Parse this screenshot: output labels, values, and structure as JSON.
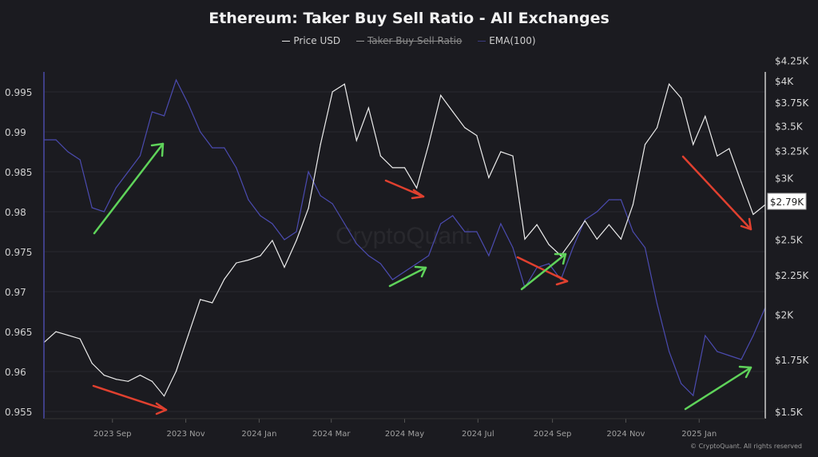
{
  "chart_data": {
    "type": "line",
    "title": "Ethereum: Taker Buy Sell Ratio - All Exchanges",
    "legend": [
      {
        "name": "Price USD",
        "color": "#e8e8e8",
        "hidden": false
      },
      {
        "name": "Taker Buy Sell Ratio",
        "color": "#9a9a9a",
        "hidden": true
      },
      {
        "name": "EMA(100)",
        "color": "#5555b0",
        "hidden": false
      }
    ],
    "legend_position": "top-center",
    "xlim": [
      "2023-07-06",
      "2025-02-25"
    ],
    "x_ticks": [
      {
        "label": "2023 Sep",
        "date": "2023-09-01"
      },
      {
        "label": "2023 Nov",
        "date": "2023-11-01"
      },
      {
        "label": "2024 Jan",
        "date": "2024-01-01"
      },
      {
        "label": "2024 Mar",
        "date": "2024-03-01"
      },
      {
        "label": "2024 May",
        "date": "2024-05-01"
      },
      {
        "label": "2024 Jul",
        "date": "2024-07-01"
      },
      {
        "label": "2024 Sep",
        "date": "2024-09-01"
      },
      {
        "label": "2024 Nov",
        "date": "2024-11-01"
      },
      {
        "label": "2025 Jan",
        "date": "2025-01-01"
      }
    ],
    "left_axis": {
      "ylim": [
        0.955,
        0.9995
      ],
      "ticks": [
        "0.995",
        "0.99",
        "0.985",
        "0.98",
        "0.975",
        "0.97",
        "0.965",
        "0.96",
        "0.955"
      ]
    },
    "right_axis": {
      "scale": "log",
      "ylim": [
        1500,
        4250
      ],
      "ticks": [
        {
          "label": "$4.25K",
          "value": 4250
        },
        {
          "label": "$4K",
          "value": 4000
        },
        {
          "label": "$3.75K",
          "value": 3750
        },
        {
          "label": "$3.5K",
          "value": 3500
        },
        {
          "label": "$3.25K",
          "value": 3250
        },
        {
          "label": "$3K",
          "value": 3000
        },
        {
          "label": "$2.5K",
          "value": 2500
        },
        {
          "label": "$2.25K",
          "value": 2250
        },
        {
          "label": "$2K",
          "value": 2000
        },
        {
          "label": "$1.75K",
          "value": 1750
        },
        {
          "label": "$1.5K",
          "value": 1500
        }
      ]
    },
    "current_price_label": "$2.79K",
    "grid": true,
    "dates": [
      "2023-07-06",
      "2023-07-16",
      "2023-07-26",
      "2023-08-05",
      "2023-08-15",
      "2023-08-25",
      "2023-09-04",
      "2023-09-14",
      "2023-09-24",
      "2023-10-04",
      "2023-10-14",
      "2023-10-24",
      "2023-11-03",
      "2023-11-13",
      "2023-11-23",
      "2023-12-03",
      "2023-12-13",
      "2023-12-23",
      "2024-01-02",
      "2024-01-12",
      "2024-01-22",
      "2024-02-01",
      "2024-02-11",
      "2024-02-21",
      "2024-03-02",
      "2024-03-12",
      "2024-03-22",
      "2024-04-01",
      "2024-04-11",
      "2024-04-21",
      "2024-05-01",
      "2024-05-11",
      "2024-05-21",
      "2024-05-31",
      "2024-06-10",
      "2024-06-20",
      "2024-06-30",
      "2024-07-10",
      "2024-07-20",
      "2024-07-30",
      "2024-08-09",
      "2024-08-19",
      "2024-08-29",
      "2024-09-08",
      "2024-09-18",
      "2024-09-28",
      "2024-10-08",
      "2024-10-18",
      "2024-10-28",
      "2024-11-07",
      "2024-11-17",
      "2024-11-27",
      "2024-12-07",
      "2024-12-17",
      "2024-12-27",
      "2025-01-06",
      "2025-01-16",
      "2025-01-26",
      "2025-02-05",
      "2025-02-15",
      "2025-02-25"
    ],
    "series": [
      {
        "name": "Price USD",
        "axis": "right",
        "values": [
          1840,
          1900,
          1880,
          1860,
          1730,
          1670,
          1650,
          1640,
          1670,
          1640,
          1570,
          1690,
          1880,
          2090,
          2070,
          2220,
          2330,
          2350,
          2380,
          2490,
          2300,
          2490,
          2740,
          3310,
          3870,
          3960,
          3350,
          3690,
          3200,
          3090,
          3090,
          2910,
          3310,
          3830,
          3650,
          3480,
          3400,
          3000,
          3240,
          3200,
          2500,
          2610,
          2460,
          2380,
          2500,
          2640,
          2500,
          2610,
          2500,
          2770,
          3310,
          3480,
          3960,
          3800,
          3310,
          3600,
          3200,
          3270,
          2960,
          2690,
          2770
        ]
      },
      {
        "name": "EMA(100)",
        "axis": "left",
        "values": [
          0.989,
          0.989,
          0.9875,
          0.9865,
          0.9805,
          0.98,
          0.983,
          0.985,
          0.987,
          0.9925,
          0.992,
          0.9965,
          0.9935,
          0.99,
          0.988,
          0.988,
          0.9855,
          0.9815,
          0.9795,
          0.9785,
          0.9765,
          0.9775,
          0.985,
          0.982,
          0.981,
          0.9785,
          0.976,
          0.9745,
          0.9735,
          0.9715,
          0.9725,
          0.9735,
          0.9745,
          0.9785,
          0.9795,
          0.9775,
          0.9775,
          0.9745,
          0.9785,
          0.9755,
          0.9705,
          0.973,
          0.9735,
          0.9715,
          0.9755,
          0.979,
          0.98,
          0.9815,
          0.9815,
          0.9775,
          0.9755,
          0.9685,
          0.9625,
          0.9585,
          0.957,
          0.9645,
          0.9625,
          0.962,
          0.9615,
          0.9645,
          0.968
        ]
      }
    ],
    "watermark": "CryptoQuant",
    "copyright": "© CryptoQuant. All rights reserved"
  }
}
